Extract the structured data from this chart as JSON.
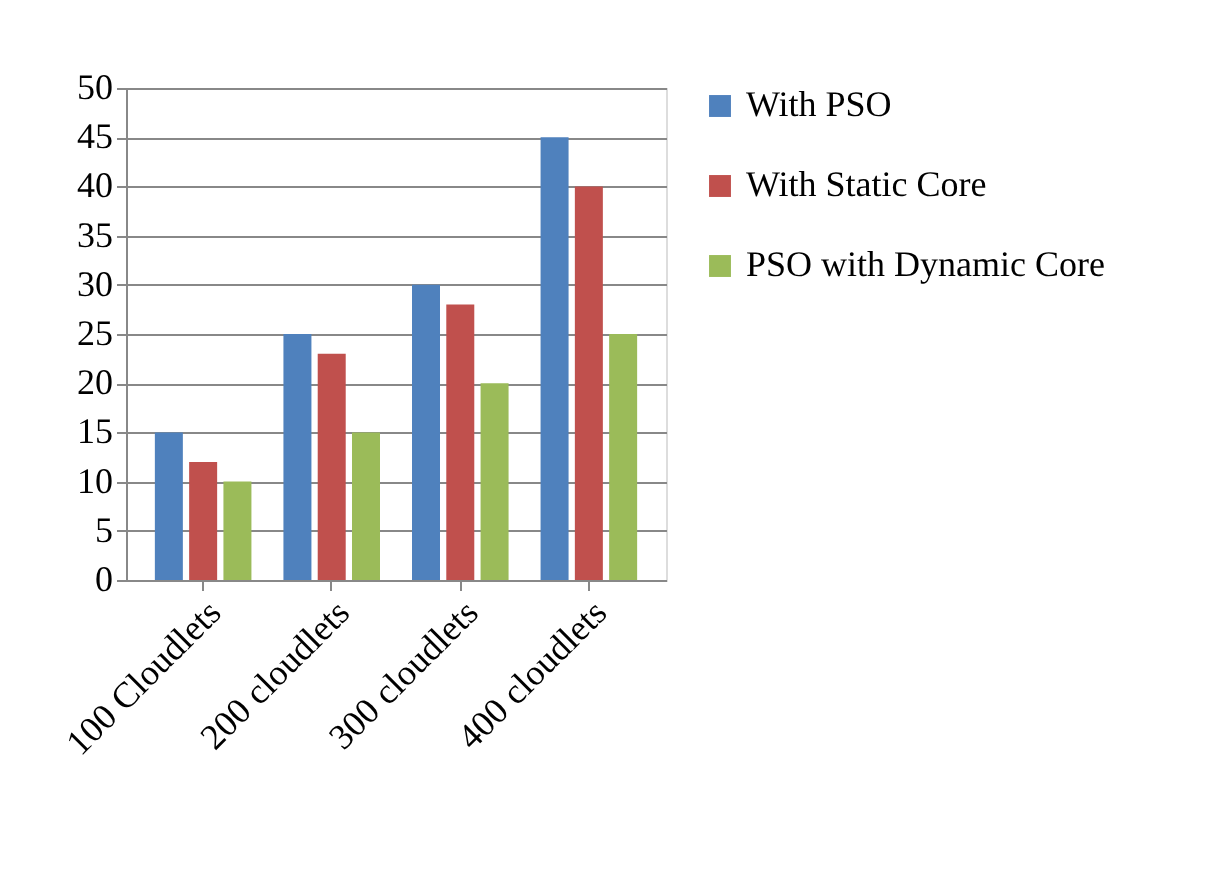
{
  "chart_data": {
    "type": "bar",
    "categories": [
      "100 Cloudlets",
      "200 cloudlets",
      "300 cloudlets",
      "400 cloudlets"
    ],
    "series": [
      {
        "name": "With PSO",
        "color": "#4f81bd",
        "values": [
          15,
          25,
          30,
          45
        ]
      },
      {
        "name": "With Static Core",
        "color": "#c0504d",
        "values": [
          12,
          23,
          28,
          40
        ]
      },
      {
        "name": "PSO with Dynamic Core",
        "color": "#9bbb59",
        "values": [
          10,
          15,
          20,
          25
        ]
      }
    ],
    "ylim": [
      0,
      50
    ],
    "yticks": [
      0,
      5,
      10,
      15,
      20,
      25,
      30,
      35,
      40,
      45,
      50
    ],
    "grid": "y",
    "legend": "right"
  }
}
